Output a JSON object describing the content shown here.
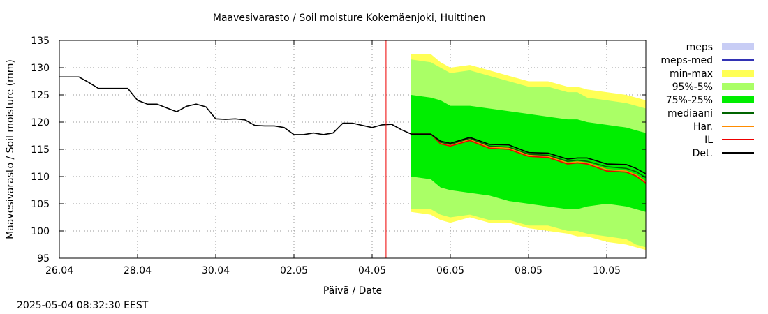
{
  "chart_data": {
    "type": "area",
    "title_parts": [
      "Maavesivarasto / Soil moisture",
      "Kokemäenjoki, Huittinen"
    ],
    "xlabel": "Päivä / Date",
    "ylabel": "Maavesivarasto / Soil moisture (mm)",
    "ylim": [
      95,
      135
    ],
    "yticks": [
      95,
      100,
      105,
      110,
      115,
      120,
      125,
      130,
      135
    ],
    "xlim": [
      "26.04 00:00",
      "11.05 00:00"
    ],
    "xticks": [
      "26.04",
      "28.04",
      "30.04",
      "02.05",
      "04.05",
      "06.05",
      "08.05",
      "10.05"
    ],
    "grid": true,
    "legend_position": "right",
    "now_marker": "04.05 08:32",
    "legend": [
      {
        "name": "meps",
        "color": "#c8cdf5",
        "kind": "box"
      },
      {
        "name": "meps-med",
        "color": "#3232b4",
        "kind": "line"
      },
      {
        "name": "min-max",
        "color": "#ffff55",
        "kind": "box"
      },
      {
        "name": "95%-5%",
        "color": "#aaff66",
        "kind": "box"
      },
      {
        "name": "75%-25%",
        "color": "#00ee00",
        "kind": "box"
      },
      {
        "name": "mediaani",
        "color": "#006400",
        "kind": "line"
      },
      {
        "name": "Har.",
        "color": "#ff8c00",
        "kind": "line"
      },
      {
        "name": "IL",
        "color": "#ee0000",
        "kind": "line"
      },
      {
        "name": "Det.",
        "color": "#000000",
        "kind": "line"
      }
    ],
    "observed": {
      "name": "Det.",
      "x": [
        "26.04 00:00",
        "26.04 12:00",
        "26.04 18:00",
        "27.04 00:00",
        "27.04 12:00",
        "27.04 18:00",
        "28.04 00:00",
        "28.04 06:00",
        "28.04 12:00",
        "28.04 18:00",
        "29.04 00:00",
        "29.04 06:00",
        "29.04 12:00",
        "29.04 18:00",
        "30.04 00:00",
        "30.04 06:00",
        "30.04 12:00",
        "30.04 18:00",
        "01.05 00:00",
        "01.05 06:00",
        "01.05 12:00",
        "01.05 18:00",
        "02.05 00:00",
        "02.05 06:00",
        "02.05 12:00",
        "02.05 18:00",
        "03.05 00:00",
        "03.05 06:00",
        "03.05 12:00",
        "03.05 18:00",
        "04.05 00:00",
        "04.05 06:00",
        "04.05 12:00",
        "04.05 18:00",
        "05.05 00:00"
      ],
      "y": [
        128.3,
        128.3,
        127.3,
        126.2,
        126.2,
        126.2,
        124.0,
        123.3,
        123.3,
        122.6,
        121.9,
        122.9,
        123.3,
        122.8,
        120.6,
        120.5,
        120.6,
        120.4,
        119.4,
        119.3,
        119.3,
        119.0,
        117.7,
        117.7,
        118.0,
        117.7,
        118.0,
        119.8,
        119.8,
        119.4,
        119.0,
        119.5,
        119.6,
        118.6,
        117.8
      ]
    },
    "forecast_x": [
      "05.05 00:00",
      "05.05 12:00",
      "05.05 18:00",
      "06.05 00:00",
      "06.05 12:00",
      "07.05 00:00",
      "07.05 12:00",
      "08.05 00:00",
      "08.05 12:00",
      "09.05 00:00",
      "09.05 06:00",
      "09.05 12:00",
      "10.05 00:00",
      "10.05 12:00",
      "10.05 18:00",
      "11.05 00:00"
    ],
    "forecast": [
      {
        "name": "min-max",
        "lower": [
          103.5,
          103.0,
          102.0,
          101.5,
          102.5,
          101.5,
          101.5,
          100.5,
          100.0,
          99.5,
          99.0,
          99.0,
          98.0,
          97.5,
          97.0,
          96.5
        ],
        "upper": [
          132.5,
          132.5,
          131.0,
          130.0,
          130.5,
          129.5,
          128.5,
          127.5,
          127.5,
          126.5,
          126.5,
          126.0,
          125.5,
          125.0,
          124.5,
          124.0
        ]
      },
      {
        "name": "95%-5%",
        "lower": [
          104.0,
          104.0,
          103.0,
          102.5,
          103.0,
          102.0,
          102.0,
          101.0,
          101.0,
          100.0,
          100.0,
          99.5,
          99.0,
          98.5,
          97.5,
          97.0
        ],
        "upper": [
          131.5,
          131.0,
          130.0,
          129.0,
          129.5,
          128.5,
          127.5,
          126.5,
          126.5,
          125.5,
          125.5,
          124.5,
          124.0,
          123.5,
          123.0,
          122.5
        ]
      },
      {
        "name": "75%-25%",
        "lower": [
          110.0,
          109.5,
          108.0,
          107.5,
          107.0,
          106.5,
          105.5,
          105.0,
          104.5,
          104.0,
          104.0,
          104.5,
          105.0,
          104.5,
          104.0,
          103.5
        ],
        "upper": [
          125.0,
          124.5,
          124.0,
          123.0,
          123.0,
          122.5,
          122.0,
          121.5,
          121.0,
          120.5,
          120.5,
          120.0,
          119.5,
          119.0,
          118.5,
          118.0
        ]
      },
      {
        "name": "Det.",
        "values": [
          117.8,
          117.8,
          116.5,
          116.1,
          117.2,
          115.9,
          115.8,
          114.4,
          114.3,
          113.2,
          113.4,
          113.4,
          112.3,
          112.2,
          111.5,
          110.5
        ]
      },
      {
        "name": "mediaani",
        "values": [
          117.8,
          117.8,
          116.3,
          115.9,
          117.0,
          115.6,
          115.4,
          114.1,
          113.9,
          112.8,
          113.0,
          112.8,
          111.8,
          111.5,
          110.9,
          109.8
        ]
      },
      {
        "name": "IL",
        "values": [
          117.8,
          117.8,
          116.0,
          115.6,
          116.6,
          115.2,
          115.0,
          113.7,
          113.5,
          112.3,
          112.5,
          112.3,
          111.0,
          110.8,
          110.1,
          108.8
        ]
      },
      {
        "name": "Har.",
        "values": [
          117.8,
          117.8,
          116.1,
          115.7,
          116.8,
          115.4,
          115.2,
          113.9,
          113.7,
          112.5,
          112.7,
          112.5,
          111.3,
          111.0,
          110.3,
          109.0
        ]
      }
    ]
  },
  "timestamp": "2025-05-04 08:32:30 EEST"
}
